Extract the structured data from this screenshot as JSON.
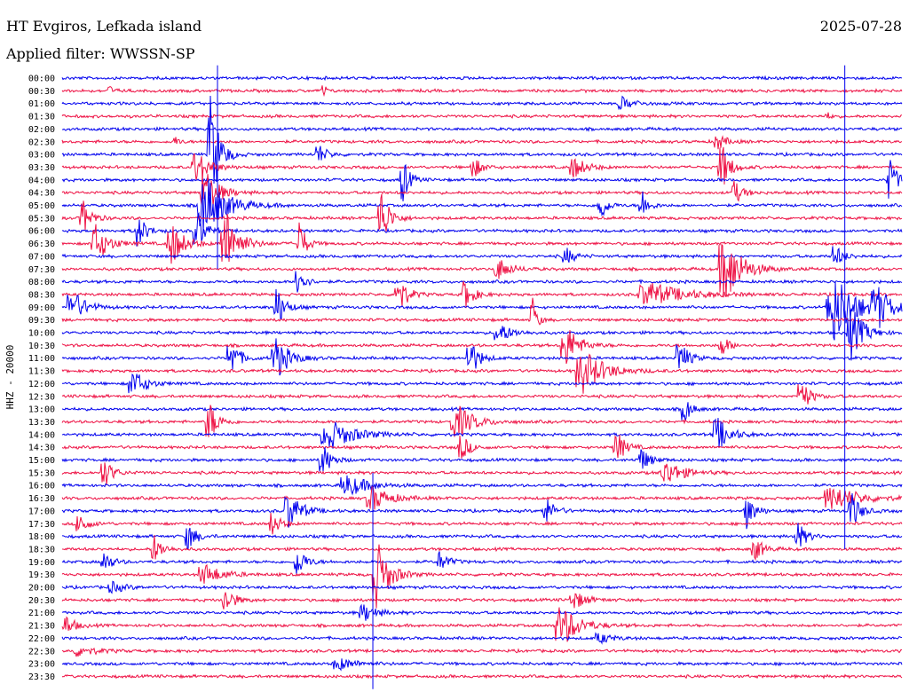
{
  "header": {
    "station": "HT Evgiros, Lefkada island",
    "filter": "Applied filter: WWSSN-SP",
    "date": "2025-07-28"
  },
  "chart_data": {
    "type": "line",
    "title": "HT Evgiros, Lefkada island",
    "subtitle": "Applied filter: WWSSN-SP",
    "ylabel": "HHZ - 20000",
    "y_tick_labels": [
      "00:00",
      "00:30",
      "01:00",
      "01:30",
      "02:00",
      "02:30",
      "03:00",
      "03:30",
      "04:00",
      "04:30",
      "05:00",
      "05:30",
      "06:00",
      "06:30",
      "07:00",
      "07:30",
      "08:00",
      "08:30",
      "09:00",
      "09:30",
      "10:00",
      "10:30",
      "11:00",
      "11:30",
      "12:00",
      "12:30",
      "13:00",
      "13:30",
      "14:00",
      "14:30",
      "15:00",
      "15:30",
      "16:00",
      "16:30",
      "17:00",
      "17:30",
      "18:00",
      "18:30",
      "19:00",
      "19:30",
      "20:00",
      "20:30",
      "21:00",
      "21:30",
      "22:00",
      "22:30",
      "23:00",
      "23:30"
    ],
    "trace_colors": [
      "#0000ee",
      "#ee1144"
    ],
    "x_minutes_per_trace": 30,
    "events": [
      {
        "row": 1,
        "t": 0.056,
        "amp": 6,
        "dur": 0.01
      },
      {
        "row": 1,
        "t": 0.31,
        "amp": 14,
        "dur": 0.006
      },
      {
        "row": 2,
        "t": 0.667,
        "amp": 7,
        "dur": 0.03
      },
      {
        "row": 3,
        "t": 0.91,
        "amp": 5,
        "dur": 0.01
      },
      {
        "row": 5,
        "t": 0.135,
        "amp": 6,
        "dur": 0.01
      },
      {
        "row": 5,
        "t": 0.78,
        "amp": 10,
        "dur": 0.02
      },
      {
        "row": 6,
        "t": 0.305,
        "amp": 12,
        "dur": 0.02
      },
      {
        "row": 6,
        "t": 0.177,
        "amp": 70,
        "dur": 0.02
      },
      {
        "row": 7,
        "t": 0.16,
        "amp": 20,
        "dur": 0.03
      },
      {
        "row": 7,
        "t": 0.49,
        "amp": 12,
        "dur": 0.02
      },
      {
        "row": 7,
        "t": 0.61,
        "amp": 12,
        "dur": 0.03
      },
      {
        "row": 7,
        "t": 0.785,
        "amp": 30,
        "dur": 0.02
      },
      {
        "row": 8,
        "t": 0.405,
        "amp": 30,
        "dur": 0.015
      },
      {
        "row": 8,
        "t": 0.985,
        "amp": 25,
        "dur": 0.02
      },
      {
        "row": 9,
        "t": 0.17,
        "amp": 30,
        "dur": 0.03
      },
      {
        "row": 9,
        "t": 0.8,
        "amp": 14,
        "dur": 0.02
      },
      {
        "row": 10,
        "t": 0.17,
        "amp": 35,
        "dur": 0.05
      },
      {
        "row": 10,
        "t": 0.64,
        "amp": 22,
        "dur": 0.015
      },
      {
        "row": 10,
        "t": 0.69,
        "amp": 20,
        "dur": 0.015
      },
      {
        "row": 11,
        "t": 0.025,
        "amp": 20,
        "dur": 0.02
      },
      {
        "row": 11,
        "t": 0.38,
        "amp": 35,
        "dur": 0.02
      },
      {
        "row": 12,
        "t": 0.09,
        "amp": 20,
        "dur": 0.02
      },
      {
        "row": 12,
        "t": 0.16,
        "amp": 25,
        "dur": 0.02
      },
      {
        "row": 13,
        "t": 0.04,
        "amp": 22,
        "dur": 0.03
      },
      {
        "row": 13,
        "t": 0.13,
        "amp": 25,
        "dur": 0.03
      },
      {
        "row": 13,
        "t": 0.195,
        "amp": 40,
        "dur": 0.03
      },
      {
        "row": 13,
        "t": 0.282,
        "amp": 30,
        "dur": 0.015
      },
      {
        "row": 14,
        "t": 0.6,
        "amp": 10,
        "dur": 0.02
      },
      {
        "row": 14,
        "t": 0.92,
        "amp": 14,
        "dur": 0.02
      },
      {
        "row": 15,
        "t": 0.52,
        "amp": 12,
        "dur": 0.03
      },
      {
        "row": 15,
        "t": 0.79,
        "amp": 40,
        "dur": 0.04
      },
      {
        "row": 16,
        "t": 0.28,
        "amp": 25,
        "dur": 0.015
      },
      {
        "row": 17,
        "t": 0.4,
        "amp": 25,
        "dur": 0.02
      },
      {
        "row": 17,
        "t": 0.48,
        "amp": 18,
        "dur": 0.02
      },
      {
        "row": 17,
        "t": 0.7,
        "amp": 14,
        "dur": 0.08
      },
      {
        "row": 18,
        "t": 0.012,
        "amp": 20,
        "dur": 0.03
      },
      {
        "row": 18,
        "t": 0.255,
        "amp": 25,
        "dur": 0.02
      },
      {
        "row": 18,
        "t": 0.92,
        "amp": 40,
        "dur": 0.05
      },
      {
        "row": 18,
        "t": 0.97,
        "amp": 25,
        "dur": 0.03
      },
      {
        "row": 19,
        "t": 0.56,
        "amp": 30,
        "dur": 0.01
      },
      {
        "row": 20,
        "t": 0.52,
        "amp": 12,
        "dur": 0.03
      },
      {
        "row": 20,
        "t": 0.94,
        "amp": 30,
        "dur": 0.03
      },
      {
        "row": 21,
        "t": 0.6,
        "amp": 25,
        "dur": 0.03
      },
      {
        "row": 21,
        "t": 0.785,
        "amp": 12,
        "dur": 0.02
      },
      {
        "row": 22,
        "t": 0.2,
        "amp": 25,
        "dur": 0.02
      },
      {
        "row": 22,
        "t": 0.255,
        "amp": 25,
        "dur": 0.03
      },
      {
        "row": 22,
        "t": 0.485,
        "amp": 25,
        "dur": 0.02
      },
      {
        "row": 22,
        "t": 0.735,
        "amp": 22,
        "dur": 0.02
      },
      {
        "row": 23,
        "t": 0.62,
        "amp": 25,
        "dur": 0.05
      },
      {
        "row": 24,
        "t": 0.085,
        "amp": 16,
        "dur": 0.03
      },
      {
        "row": 25,
        "t": 0.88,
        "amp": 20,
        "dur": 0.02
      },
      {
        "row": 26,
        "t": 0.74,
        "amp": 20,
        "dur": 0.015
      },
      {
        "row": 27,
        "t": 0.175,
        "amp": 25,
        "dur": 0.02
      },
      {
        "row": 27,
        "t": 0.47,
        "amp": 20,
        "dur": 0.04
      },
      {
        "row": 28,
        "t": 0.78,
        "amp": 20,
        "dur": 0.03
      },
      {
        "row": 28,
        "t": 0.32,
        "amp": 16,
        "dur": 0.06
      },
      {
        "row": 29,
        "t": 0.475,
        "amp": 16,
        "dur": 0.02
      },
      {
        "row": 29,
        "t": 0.66,
        "amp": 20,
        "dur": 0.02
      },
      {
        "row": 30,
        "t": 0.31,
        "amp": 20,
        "dur": 0.02
      },
      {
        "row": 30,
        "t": 0.69,
        "amp": 14,
        "dur": 0.02
      },
      {
        "row": 31,
        "t": 0.05,
        "amp": 18,
        "dur": 0.02
      },
      {
        "row": 31,
        "t": 0.72,
        "amp": 14,
        "dur": 0.04
      },
      {
        "row": 32,
        "t": 0.34,
        "amp": 12,
        "dur": 0.05
      },
      {
        "row": 33,
        "t": 0.37,
        "amp": 14,
        "dur": 0.04
      },
      {
        "row": 33,
        "t": 0.92,
        "amp": 14,
        "dur": 0.06
      },
      {
        "row": 34,
        "t": 0.27,
        "amp": 22,
        "dur": 0.03
      },
      {
        "row": 34,
        "t": 0.575,
        "amp": 18,
        "dur": 0.02
      },
      {
        "row": 34,
        "t": 0.815,
        "amp": 20,
        "dur": 0.02
      },
      {
        "row": 34,
        "t": 0.94,
        "amp": 22,
        "dur": 0.02
      },
      {
        "row": 35,
        "t": 0.02,
        "amp": 14,
        "dur": 0.02
      },
      {
        "row": 35,
        "t": 0.25,
        "amp": 14,
        "dur": 0.02
      },
      {
        "row": 36,
        "t": 0.15,
        "amp": 16,
        "dur": 0.02
      },
      {
        "row": 36,
        "t": 0.875,
        "amp": 18,
        "dur": 0.02
      },
      {
        "row": 37,
        "t": 0.11,
        "amp": 16,
        "dur": 0.02
      },
      {
        "row": 37,
        "t": 0.825,
        "amp": 14,
        "dur": 0.02
      },
      {
        "row": 38,
        "t": 0.05,
        "amp": 12,
        "dur": 0.02
      },
      {
        "row": 38,
        "t": 0.28,
        "amp": 18,
        "dur": 0.02
      },
      {
        "row": 38,
        "t": 0.45,
        "amp": 12,
        "dur": 0.02
      },
      {
        "row": 39,
        "t": 0.375,
        "amp": 40,
        "dur": 0.03
      },
      {
        "row": 39,
        "t": 0.17,
        "amp": 12,
        "dur": 0.04
      },
      {
        "row": 40,
        "t": 0.06,
        "amp": 6,
        "dur": 0.03
      },
      {
        "row": 41,
        "t": 0.195,
        "amp": 16,
        "dur": 0.02
      },
      {
        "row": 41,
        "t": 0.61,
        "amp": 10,
        "dur": 0.03
      },
      {
        "row": 42,
        "t": 0.36,
        "amp": 10,
        "dur": 0.03
      },
      {
        "row": 43,
        "t": 0.595,
        "amp": 25,
        "dur": 0.04
      },
      {
        "row": 43,
        "t": 0.005,
        "amp": 12,
        "dur": 0.02
      },
      {
        "row": 44,
        "t": 0.64,
        "amp": 6,
        "dur": 0.03
      },
      {
        "row": 45,
        "t": 0.02,
        "amp": 6,
        "dur": 0.04
      },
      {
        "row": 46,
        "t": 0.33,
        "amp": 7,
        "dur": 0.04
      }
    ],
    "spikes": [
      {
        "t": 0.185,
        "from_row": -1,
        "to_row": 15,
        "color": "#0000ee"
      },
      {
        "t": 0.932,
        "from_row": -1,
        "to_row": 37,
        "color": "#0000ee"
      },
      {
        "t": 0.37,
        "from_row": 31,
        "to_row": 48,
        "color": "#0000ee"
      }
    ]
  }
}
